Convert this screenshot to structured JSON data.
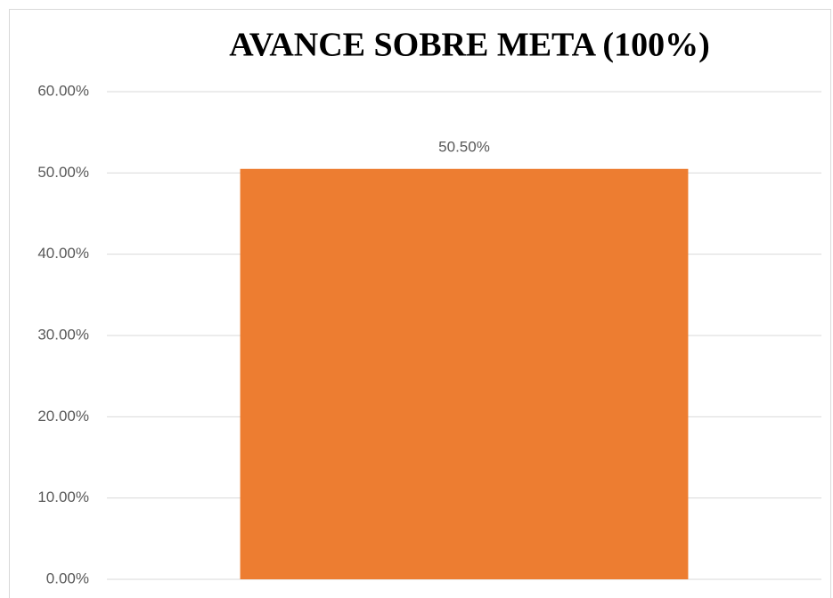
{
  "chart_data": {
    "type": "bar",
    "title": "AVANCE SOBRE META (100%)",
    "categories": [
      null
    ],
    "values": [
      50.5
    ],
    "value_labels": [
      "50.50%"
    ],
    "color": "#ed7d31",
    "ylim": [
      0,
      60
    ],
    "yticks": [
      {
        "value": 0,
        "label": "0.00%"
      },
      {
        "value": 10,
        "label": "10.00%"
      },
      {
        "value": 20,
        "label": "20.00%"
      },
      {
        "value": 30,
        "label": "30.00%"
      },
      {
        "value": 40,
        "label": "40.00%"
      },
      {
        "value": 50,
        "label": "50.00%"
      },
      {
        "value": 60,
        "label": "60.00%"
      }
    ],
    "grid": true
  }
}
